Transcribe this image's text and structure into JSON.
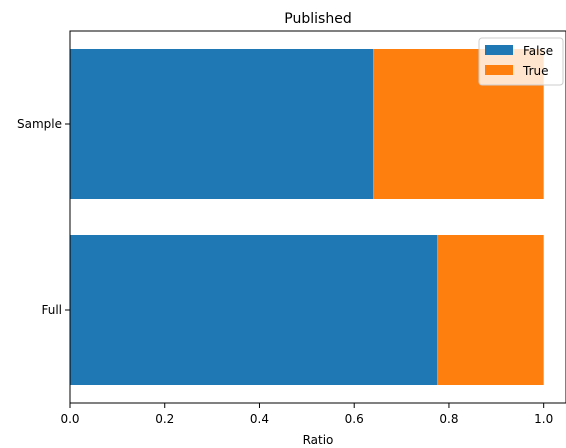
{
  "chart_data": {
    "type": "bar",
    "orientation": "horizontal",
    "stacked": true,
    "title": "Published",
    "xlabel": "Ratio",
    "ylabel": "",
    "xlim": [
      0,
      1.0
    ],
    "xticks": [
      "0.0",
      "0.2",
      "0.4",
      "0.6",
      "0.8",
      "1.0"
    ],
    "categories": [
      "Sample",
      "Full"
    ],
    "series": [
      {
        "name": "False",
        "color": "#1f77b4",
        "values": [
          0.64,
          0.775
        ]
      },
      {
        "name": "True",
        "color": "#ff7f0e",
        "values": [
          0.36,
          0.225
        ]
      }
    ],
    "legend": {
      "position": "top-right"
    },
    "grid": false
  }
}
